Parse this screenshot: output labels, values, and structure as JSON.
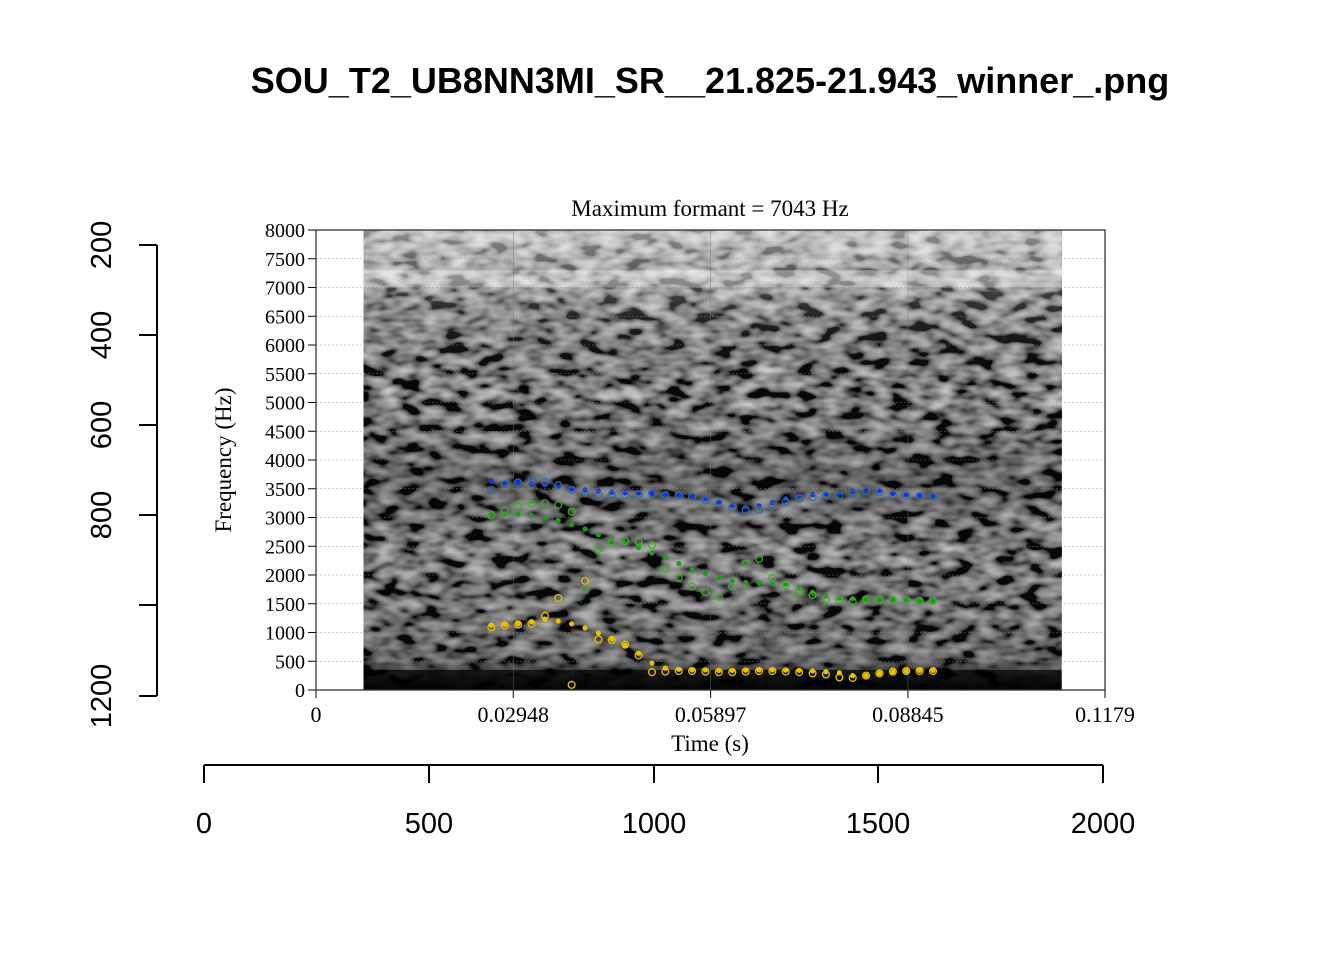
{
  "figure": {
    "title": "SOU_T2_UB8NN3MI_SR__21.825-21.943_winner_.png"
  },
  "outer_axes": {
    "x_ticks": [
      "0",
      "500",
      "1000",
      "1500",
      "2000"
    ],
    "y_ticks": [
      "200",
      "400",
      "600",
      "800",
      "1200"
    ]
  },
  "chart_data": {
    "type": "scatter",
    "title": "Maximum formant  =  7043 Hz",
    "xlabel": "Time (s)",
    "ylabel": "Frequency (Hz)",
    "xlim": [
      0,
      0.1179
    ],
    "ylim": [
      0,
      8000
    ],
    "x_tick_labels": [
      "0",
      "0.02948",
      "0.05897",
      "0.08845",
      "0.1179"
    ],
    "y_tick_labels": [
      "0",
      "500",
      "1000",
      "1500",
      "2000",
      "2500",
      "3000",
      "3500",
      "4000",
      "4500",
      "5000",
      "5500",
      "6000",
      "6500",
      "7000",
      "7500",
      "8000"
    ],
    "grid": true,
    "background": "grayscale spectrogram",
    "spectrogram_time_range": [
      0.0071,
      0.1114
    ],
    "series": [
      {
        "color": "#1a2fd6",
        "marker": "dot",
        "x": [
          0.0262,
          0.0282,
          0.0302,
          0.0322,
          0.0342,
          0.0362,
          0.0382,
          0.0402,
          0.0422,
          0.0442,
          0.0462,
          0.0482,
          0.0502,
          0.0522,
          0.0542,
          0.0562,
          0.0582,
          0.0602,
          0.0622,
          0.0642,
          0.0662,
          0.0682,
          0.0702,
          0.0722,
          0.0742,
          0.0762,
          0.0782,
          0.0802,
          0.0822,
          0.0842,
          0.0862,
          0.0882,
          0.0902,
          0.0922
        ],
        "y": [
          3630,
          3600,
          3610,
          3580,
          3570,
          3530,
          3500,
          3480,
          3460,
          3440,
          3430,
          3430,
          3420,
          3410,
          3400,
          3380,
          3330,
          3270,
          3210,
          3180,
          3200,
          3260,
          3330,
          3380,
          3400,
          3410,
          3420,
          3460,
          3490,
          3470,
          3420,
          3400,
          3390,
          3380
        ]
      },
      {
        "color": "#1f9a1f",
        "marker": "dot",
        "x": [
          0.0262,
          0.0282,
          0.0302,
          0.0322,
          0.0342,
          0.0362,
          0.0382,
          0.0402,
          0.0422,
          0.0442,
          0.0462,
          0.0482,
          0.0502,
          0.0522,
          0.0542,
          0.0562,
          0.0582,
          0.0602,
          0.0622,
          0.0642,
          0.0662,
          0.0682,
          0.0702,
          0.0722,
          0.0742,
          0.0762,
          0.0782,
          0.0802,
          0.0822,
          0.0842,
          0.0862,
          0.0882,
          0.0902,
          0.0922
        ],
        "y": [
          3080,
          3060,
          3060,
          3040,
          3000,
          2950,
          2880,
          2800,
          2700,
          2620,
          2540,
          2480,
          2380,
          2300,
          2200,
          2090,
          2030,
          1960,
          1900,
          1870,
          1870,
          1860,
          1840,
          1780,
          1700,
          1640,
          1600,
          1590,
          1580,
          1580,
          1570,
          1560,
          1560,
          1550
        ]
      },
      {
        "color": "#e8c200",
        "marker": "dot",
        "x": [
          0.0262,
          0.0282,
          0.0302,
          0.0322,
          0.0342,
          0.0362,
          0.0382,
          0.0402,
          0.0422,
          0.0442,
          0.0462,
          0.0482,
          0.0502,
          0.0522,
          0.0542,
          0.0562,
          0.0582,
          0.0602,
          0.0622,
          0.0642,
          0.0662,
          0.0682,
          0.0702,
          0.0722,
          0.0742,
          0.0762,
          0.0782,
          0.0802,
          0.0822,
          0.0842,
          0.0862,
          0.0882,
          0.0902,
          0.0922
        ],
        "y": [
          1130,
          1140,
          1150,
          1190,
          1230,
          1200,
          1150,
          1080,
          990,
          890,
          780,
          640,
          470,
          380,
          360,
          350,
          350,
          340,
          340,
          345,
          350,
          350,
          345,
          340,
          330,
          320,
          300,
          250,
          250,
          290,
          320,
          330,
          340,
          340
        ]
      },
      {
        "color": "#2e6cae",
        "marker": "circle",
        "x": [
          0.0262,
          0.0282,
          0.0302,
          0.0322,
          0.0342,
          0.0362,
          0.0382,
          0.0402,
          0.0422,
          0.0442,
          0.0462,
          0.0482,
          0.0502,
          0.0522,
          0.0542,
          0.0562,
          0.0582,
          0.0602,
          0.0622,
          0.0642,
          0.0662,
          0.0682,
          0.0702,
          0.0722,
          0.0742,
          0.0762,
          0.0782,
          0.0802,
          0.0822,
          0.0842,
          0.0862,
          0.0882,
          0.0902,
          0.0922
        ],
        "y": [
          3480,
          3580,
          3610,
          3640,
          3620,
          3560,
          3480,
          3430,
          3400,
          3400,
          3390,
          3400,
          3420,
          3390,
          3380,
          3360,
          3300,
          3250,
          3180,
          3130,
          3130,
          3200,
          3270,
          3330,
          3350,
          3380,
          3380,
          3420,
          3460,
          3440,
          3400,
          3380,
          3370,
          3360
        ]
      },
      {
        "color": "#3fae2a",
        "marker": "circle",
        "x": [
          0.0262,
          0.0282,
          0.0302,
          0.0322,
          0.0342,
          0.0362,
          0.0382,
          0.0402,
          0.0422,
          0.0442,
          0.0462,
          0.0482,
          0.0502,
          0.0522,
          0.0542,
          0.0562,
          0.0582,
          0.0602,
          0.0622,
          0.0642,
          0.0662,
          0.0682,
          0.0702,
          0.0722,
          0.0742,
          0.0762,
          0.0782,
          0.0802,
          0.0822,
          0.0842,
          0.0862,
          0.0882,
          0.0902,
          0.0922
        ],
        "y": [
          3040,
          3120,
          3200,
          3240,
          3250,
          3220,
          3100,
          1760,
          2450,
          2560,
          2590,
          2580,
          2520,
          2100,
          1950,
          1800,
          1700,
          1620,
          1800,
          2200,
          2280,
          1950,
          1820,
          1720,
          1650,
          1580,
          1560,
          1540,
          1580,
          1570,
          1570,
          1560,
          1550,
          1550
        ]
      },
      {
        "color": "#e8c200",
        "marker": "circle",
        "x": [
          0.0262,
          0.0282,
          0.0302,
          0.0322,
          0.0342,
          0.0362,
          0.0382,
          0.0402,
          0.0422,
          0.0442,
          0.0462,
          0.0482,
          0.0502,
          0.0522,
          0.0542,
          0.0562,
          0.0582,
          0.0602,
          0.0622,
          0.0642,
          0.0662,
          0.0682,
          0.0702,
          0.0722,
          0.0742,
          0.0762,
          0.0782,
          0.0802,
          0.0822,
          0.0842,
          0.0862,
          0.0882,
          0.0902,
          0.0922
        ],
        "y": [
          1090,
          1120,
          1140,
          1150,
          1290,
          1600,
          90,
          1900,
          880,
          870,
          790,
          600,
          310,
          320,
          330,
          330,
          320,
          310,
          310,
          320,
          330,
          330,
          320,
          310,
          290,
          270,
          220,
          210,
          250,
          290,
          320,
          330,
          330,
          330
        ]
      }
    ]
  }
}
